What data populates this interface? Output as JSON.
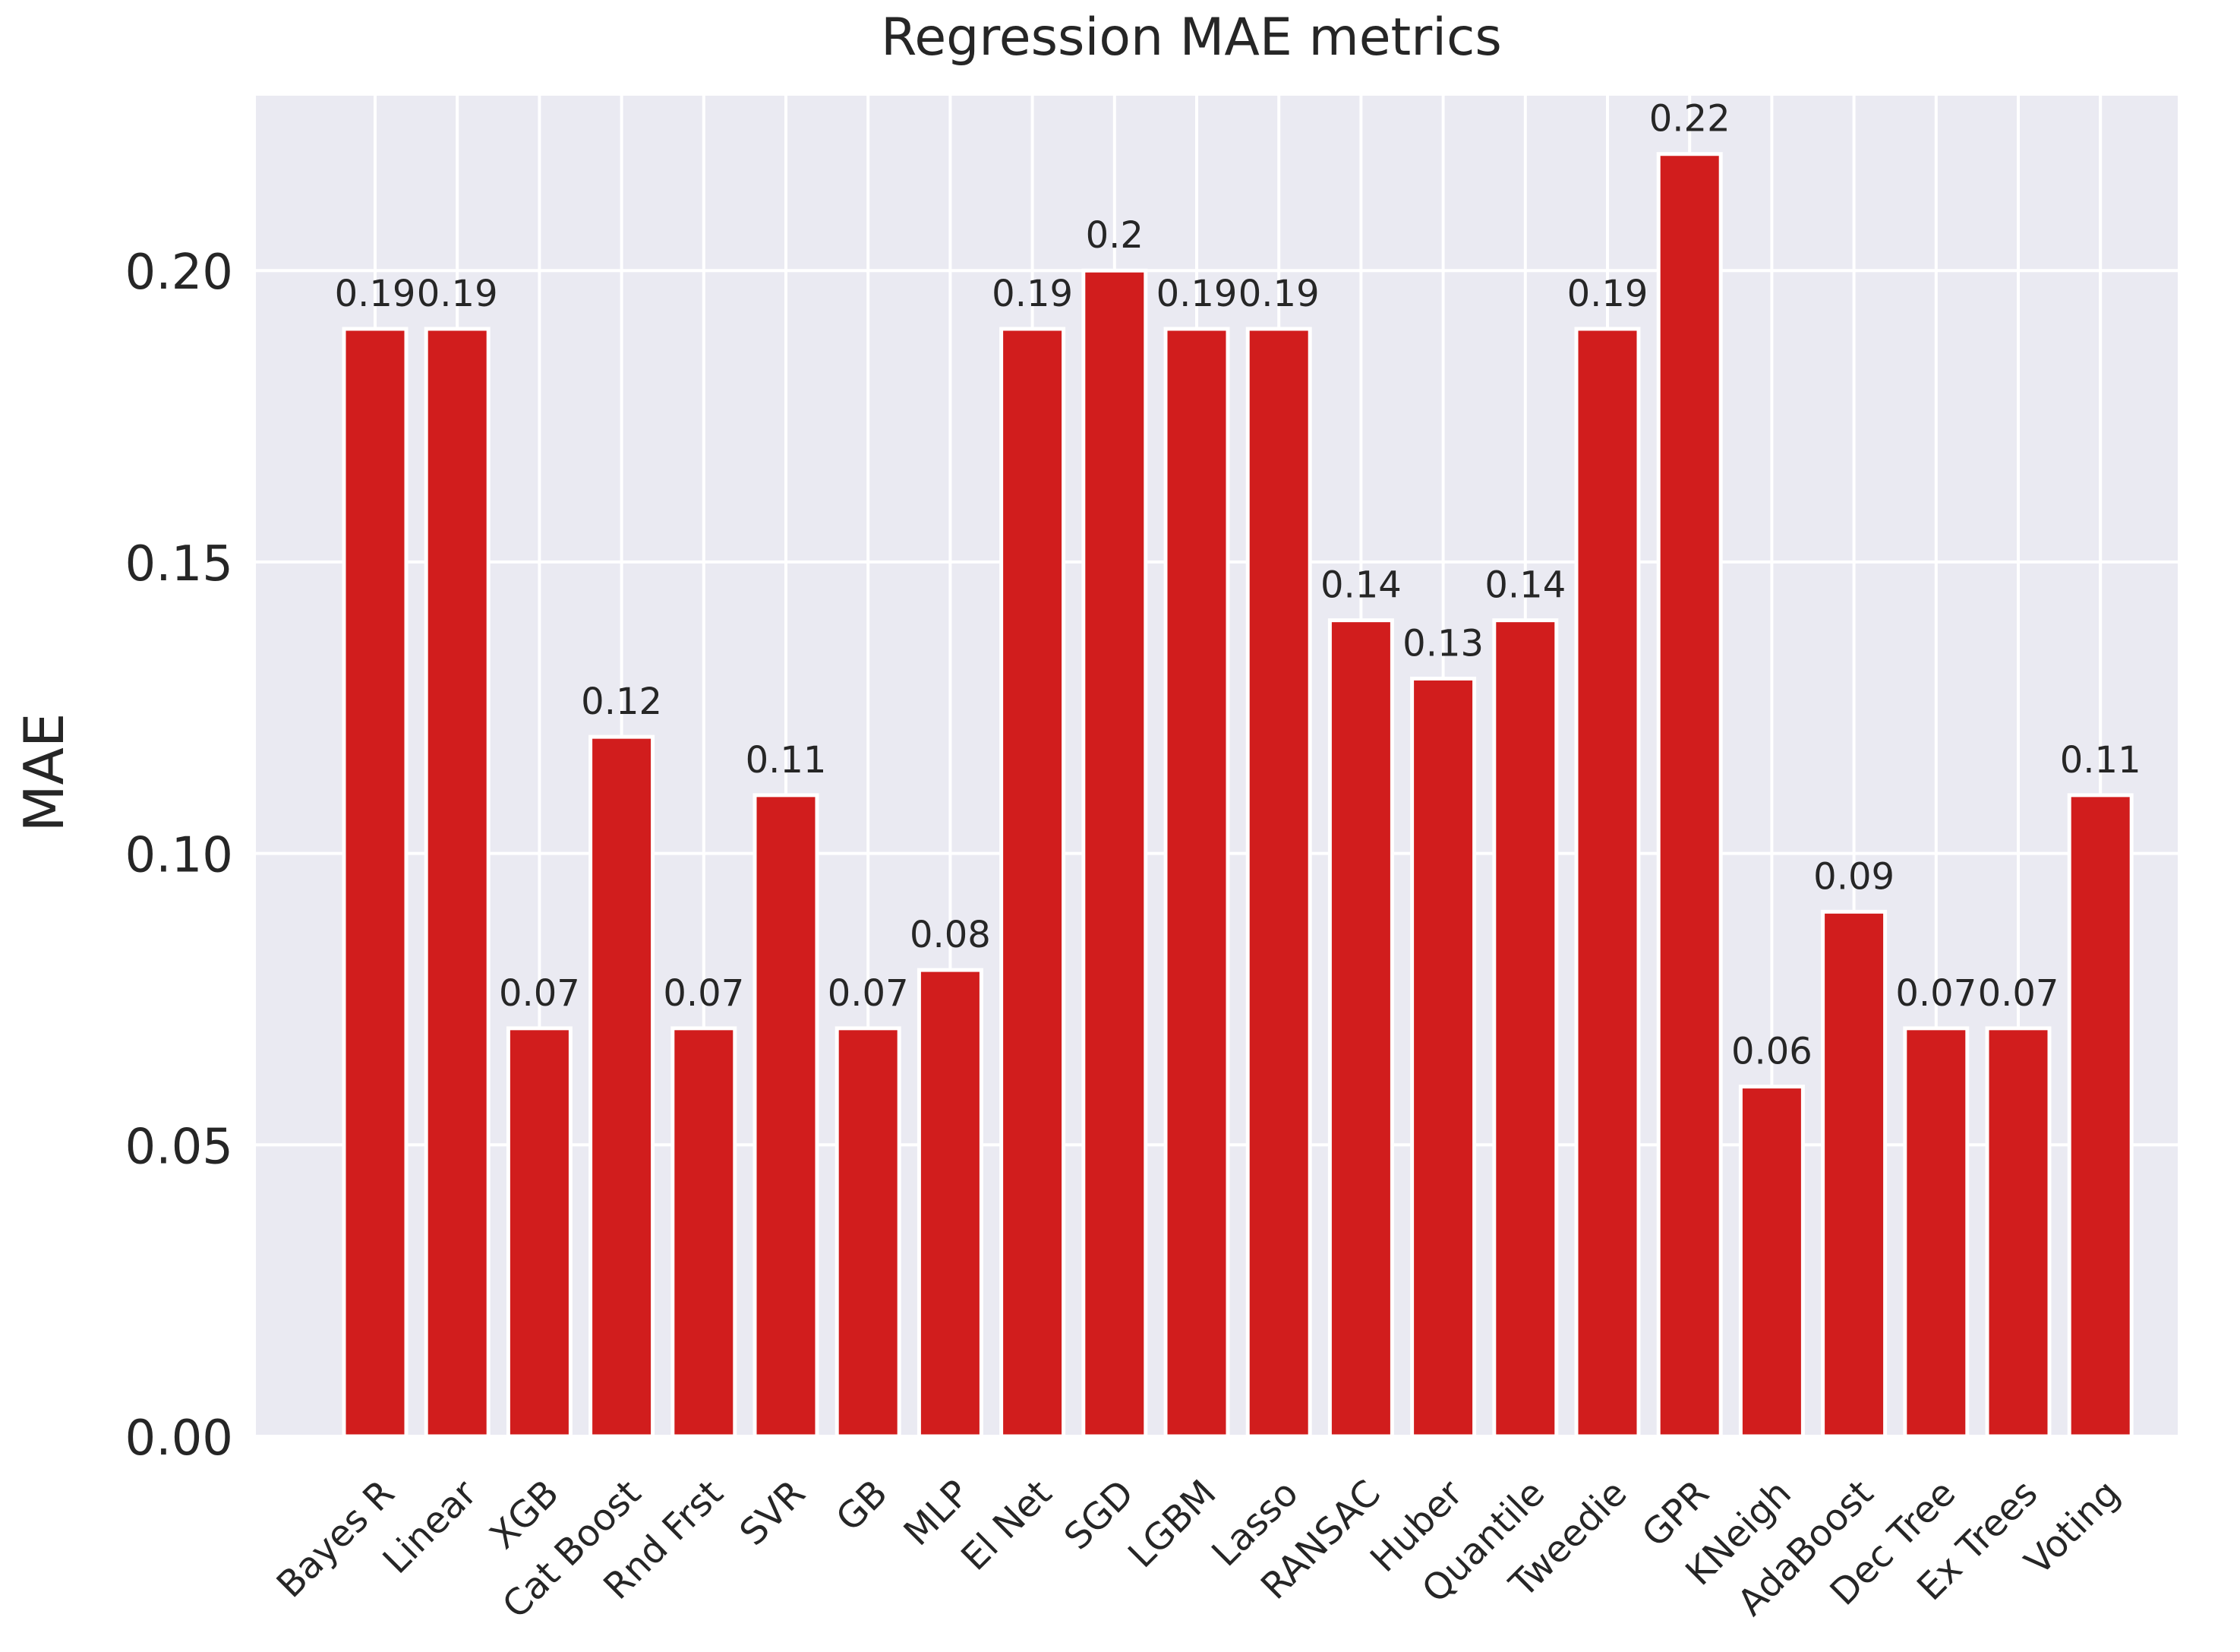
{
  "chart_data": {
    "type": "bar",
    "title": "Regression MAE metrics",
    "xlabel": "",
    "ylabel": "MAE",
    "ylim": [
      0,
      0.23
    ],
    "yticks": [
      0.0,
      0.05,
      0.1,
      0.15,
      0.2
    ],
    "ytick_labels": [
      "0.00",
      "0.05",
      "0.10",
      "0.15",
      "0.20"
    ],
    "grid": true,
    "categories": [
      "Bayes R",
      "Linear",
      "XGB",
      "Cat Boost",
      "Rnd Frst",
      "SVR",
      "GB",
      "MLP",
      "El Net",
      "SGD",
      "LGBM",
      "Lasso",
      "RANSAC",
      "Huber",
      "Quantile",
      "Tweedie",
      "GPR",
      "KNeigh",
      "AdaBoost",
      "Dec Tree",
      "Ex Trees",
      "Voting"
    ],
    "values": [
      0.19,
      0.19,
      0.07,
      0.12,
      0.07,
      0.11,
      0.07,
      0.08,
      0.19,
      0.2,
      0.19,
      0.19,
      0.14,
      0.13,
      0.14,
      0.19,
      0.22,
      0.06,
      0.09,
      0.07,
      0.07,
      0.11
    ],
    "value_labels": [
      "0.19",
      "0.19",
      "0.07",
      "0.12",
      "0.07",
      "0.11",
      "0.07",
      "0.08",
      "0.19",
      "0.2",
      "0.19",
      "0.19",
      "0.14",
      "0.13",
      "0.14",
      "0.19",
      "0.22",
      "0.06",
      "0.09",
      "0.07",
      "0.07",
      "0.11"
    ],
    "colors": {
      "bar": "#d11d1d",
      "background": "#eaeaf2",
      "grid": "#ffffff",
      "text": "#262626"
    }
  }
}
